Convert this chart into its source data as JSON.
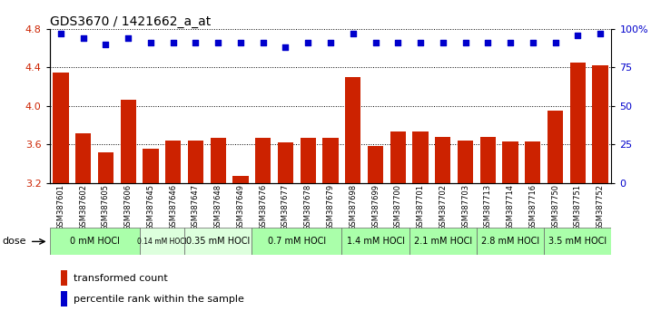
{
  "title": "GDS3670 / 1421662_a_at",
  "samples": [
    "GSM387601",
    "GSM387602",
    "GSM387605",
    "GSM387606",
    "GSM387645",
    "GSM387646",
    "GSM387647",
    "GSM387648",
    "GSM387649",
    "GSM387676",
    "GSM387677",
    "GSM387678",
    "GSM387679",
    "GSM387698",
    "GSM387699",
    "GSM387700",
    "GSM387701",
    "GSM387702",
    "GSM387703",
    "GSM387713",
    "GSM387714",
    "GSM387716",
    "GSM387750",
    "GSM387751",
    "GSM387752"
  ],
  "bar_values": [
    4.35,
    3.72,
    3.52,
    4.06,
    3.56,
    3.64,
    3.64,
    3.67,
    3.27,
    3.67,
    3.62,
    3.67,
    3.67,
    4.3,
    3.58,
    3.73,
    3.73,
    3.68,
    3.64,
    3.68,
    3.63,
    3.63,
    3.95,
    4.45,
    4.42
  ],
  "percentile_values": [
    97,
    94,
    90,
    94,
    91,
    91,
    91,
    91,
    91,
    91,
    88,
    91,
    91,
    97,
    91,
    91,
    91,
    91,
    91,
    91,
    91,
    91,
    91,
    96,
    97
  ],
  "dose_groups": [
    {
      "label": "0 mM HOCl",
      "start": 0,
      "end": 4,
      "color": "#aaffaa"
    },
    {
      "label": "0.14 mM HOCl",
      "start": 4,
      "end": 6,
      "color": "#ddffdd"
    },
    {
      "label": "0.35 mM HOCl",
      "start": 6,
      "end": 9,
      "color": "#ddffdd"
    },
    {
      "label": "0.7 mM HOCl",
      "start": 9,
      "end": 13,
      "color": "#aaffaa"
    },
    {
      "label": "1.4 mM HOCl",
      "start": 13,
      "end": 16,
      "color": "#aaffaa"
    },
    {
      "label": "2.1 mM HOCl",
      "start": 16,
      "end": 19,
      "color": "#aaffaa"
    },
    {
      "label": "2.8 mM HOCl",
      "start": 19,
      "end": 22,
      "color": "#aaffaa"
    },
    {
      "label": "3.5 mM HOCl",
      "start": 22,
      "end": 25,
      "color": "#aaffaa"
    }
  ],
  "bar_color": "#cc2200",
  "dot_color": "#0000cc",
  "ylim_left": [
    3.2,
    4.8
  ],
  "yticks_left": [
    3.2,
    3.6,
    4.0,
    4.4,
    4.8
  ],
  "ylim_right": [
    0,
    100
  ],
  "yticks_right": [
    0,
    25,
    50,
    75,
    100
  ],
  "legend_bar_label": "transformed count",
  "legend_dot_label": "percentile rank within the sample",
  "dose_label": "dose",
  "bg_color": "#ffffff",
  "title_fontsize": 10,
  "axis_label_color_left": "#cc2200",
  "axis_label_color_right": "#0000cc",
  "sample_fontsize": 6.0,
  "dose_fontsize": 7.0,
  "legend_fontsize": 8
}
